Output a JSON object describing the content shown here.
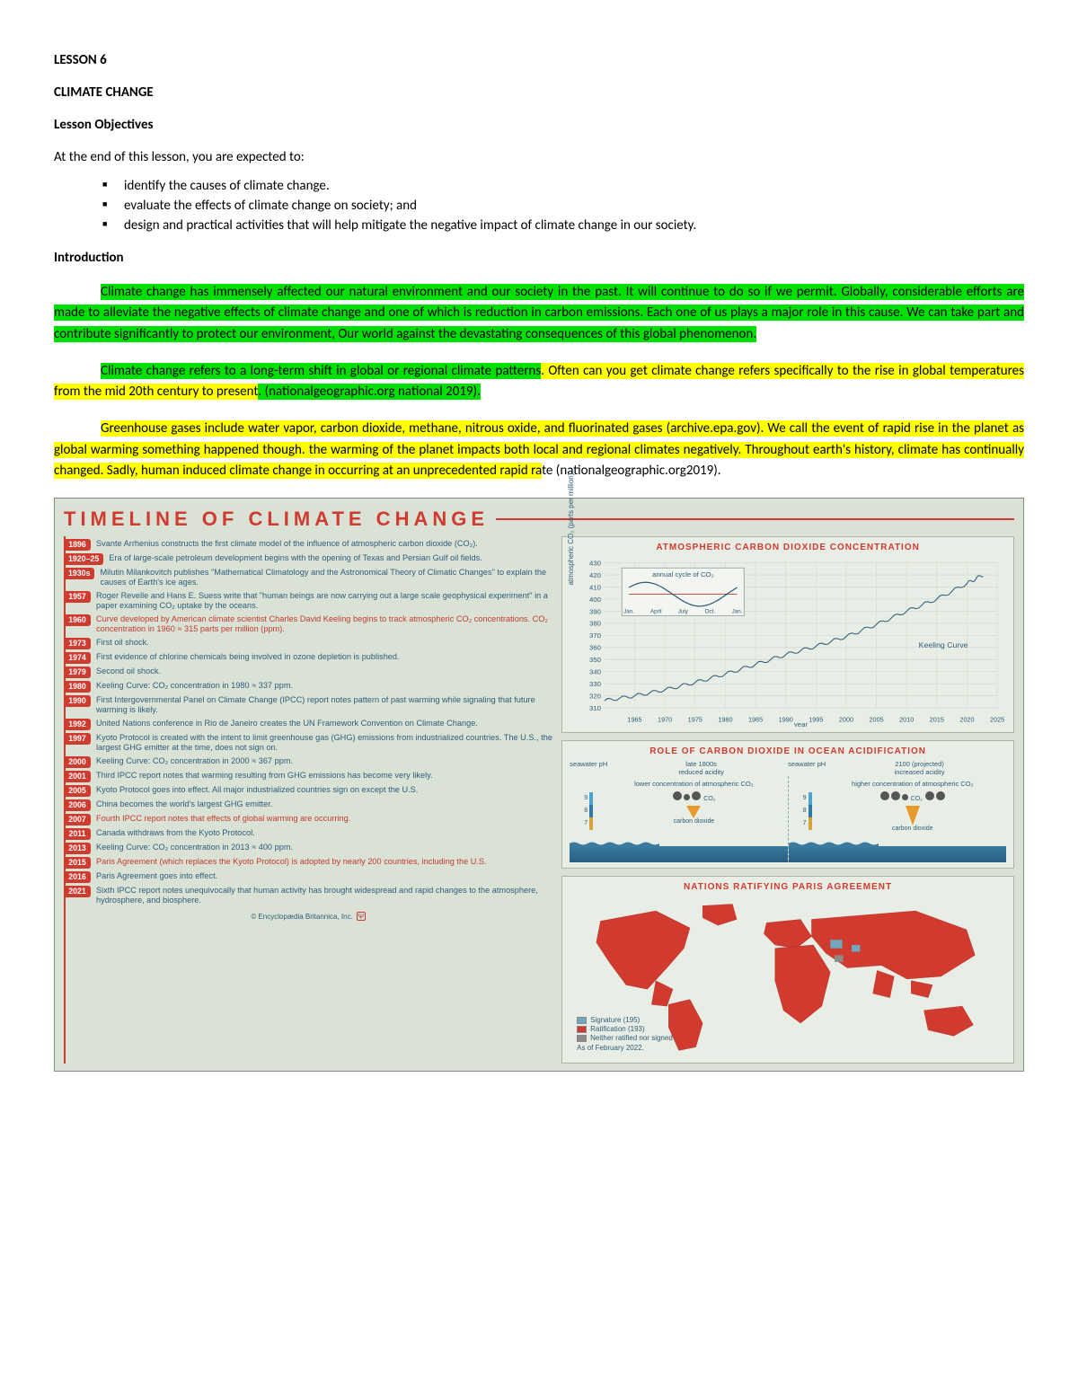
{
  "lesson_number": "LESSON 6",
  "lesson_title": "CLIMATE CHANGE",
  "objectives_heading": "Lesson Objectives",
  "objectives_intro": "At the end of this lesson, you are expected to:",
  "objectives": [
    "identify the causes of climate change.",
    "evaluate the effects of climate change on society; and",
    "design and practical activities that will help mitigate the negative impact of climate change in our society."
  ],
  "intro_heading": "Introduction",
  "para1": "Climate change has immensely affected our natural environment and our society in the past. It will continue to do so if we permit. Globally, considerable efforts are made to alleviate the negative effects of climate change and one of which is reduction in carbon emissions. Each one of us plays a major role in this cause. We can take part and contribute significantly to protect our environment, Our world against the devastating consequences of this global phenomenon.",
  "para2_a": "Climate change refers to a long-term shift in global or regional climate patterns",
  "para2_b": ". Often can you get climate change refers specifically to the rise in global temperatures from the mid 20th century to present",
  "para2_c": ". (nationalgeographic.org national 2019).",
  "para3_a": "Greenhouse gases include water vapor, carbon dioxide, methane, nitrous oxide, and fluorinated gases (archive.epa.gov). We call the event of rapid rise in the planet as global warming something happened though",
  "para3_b": ". the warming of the planet impacts both local and regional climates negatively. Throughout earth's history, climate has continually changed. Sadly, human induced climate change in occurring at an unprecedented rapid ra",
  "para3_c": "te (nationalgeographic.org2019).",
  "highlight_colors": {
    "green": "#00e000",
    "yellow": "#ffff00"
  },
  "infographic": {
    "background": "#d9e2d5",
    "accent": "#d13a2f",
    "text_blue": "#2f5c7a",
    "title": "TIMELINE OF CLIMATE CHANGE",
    "credit": "© Encyclopædia Britannica, Inc.",
    "timeline": [
      {
        "year": "1896",
        "text": "Svante Arrhenius constructs the first climate model of the influence of atmospheric carbon dioxide (CO₂).",
        "red": false
      },
      {
        "year": "1920–25",
        "text": "Era of large-scale petroleum development begins with the opening of Texas and Persian Gulf oil fields.",
        "red": false
      },
      {
        "year": "1930s",
        "text": "Milutin Milankovitch publishes \"Mathematical Climatology and the Astronomical Theory of Climatic Changes\" to explain the causes of Earth's ice ages.",
        "red": false
      },
      {
        "year": "1957",
        "text": "Roger Revelle and Hans E. Suess write that \"human beings are now carrying out a large scale geophysical experiment\" in a paper examining CO₂ uptake by the oceans.",
        "red": false
      },
      {
        "year": "1960",
        "text": "Curve developed by American climate scientist Charles David Keeling begins to track atmospheric CO₂ concentrations. CO₂ concentration in 1960 ≈ 315 parts per million (ppm).",
        "red": true
      },
      {
        "year": "1973",
        "text": "First oil shock.",
        "red": false
      },
      {
        "year": "1974",
        "text": "First evidence of chlorine chemicals being involved in ozone depletion is published.",
        "red": false
      },
      {
        "year": "1979",
        "text": "Second oil shock.",
        "red": false
      },
      {
        "year": "1980",
        "text": "Keeling Curve: CO₂ concentration in 1980 ≈ 337 ppm.",
        "red": false
      },
      {
        "year": "1990",
        "text": "First Intergovernmental Panel on Climate Change (IPCC) report notes pattern of past warming while signaling that future warming is likely.",
        "red": false
      },
      {
        "year": "1992",
        "text": "United Nations conference in Rio de Janeiro creates the UN Framework Convention on Climate Change.",
        "red": false
      },
      {
        "year": "1997",
        "text": "Kyoto Protocol is created with the intent to limit greenhouse gas (GHG) emissions from industrialized countries. The U.S., the largest GHG emitter at the time, does not sign on.",
        "red": false
      },
      {
        "year": "2000",
        "text": "Keeling Curve: CO₂ concentration in 2000 ≈ 367 ppm.",
        "red": false
      },
      {
        "year": "2001",
        "text": "Third IPCC report notes that warming resulting from GHG emissions has become very likely.",
        "red": false
      },
      {
        "year": "2005",
        "text": "Kyoto Protocol goes into effect. All major industrialized countries sign on except the U.S.",
        "red": false
      },
      {
        "year": "2006",
        "text": "China becomes the world's largest GHG emitter.",
        "red": false
      },
      {
        "year": "2007",
        "text": "Fourth IPCC report notes that effects of global warming are occurring.",
        "red": true
      },
      {
        "year": "2011",
        "text": "Canada withdraws from the Kyoto Protocol.",
        "red": false
      },
      {
        "year": "2013",
        "text": "Keeling Curve: CO₂ concentration in 2013 ≈ 400 ppm.",
        "red": false
      },
      {
        "year": "2015",
        "text": "Paris Agreement (which replaces the Kyoto Protocol) is adopted by nearly 200 countries, including the U.S.",
        "red": true
      },
      {
        "year": "2016",
        "text": "Paris Agreement goes into effect.",
        "red": false
      },
      {
        "year": "2021",
        "text": "Sixth IPCC report notes unequivocally that human activity has brought widespread and rapid changes to the atmosphere, hydrosphere, and biosphere.",
        "red": false
      }
    ],
    "co2_chart": {
      "title": "ATMOSPHERIC CARBON DIOXIDE CONCENTRATION",
      "ylabel": "atmospheric CO₂ (parts per million)",
      "xlabel": "year",
      "ylim": [
        310,
        430
      ],
      "ytick_step": 10,
      "xlim": [
        1960,
        2025
      ],
      "xtick_step": 5,
      "keeling_label": "Keeling Curve",
      "line_color": "#2f5c7a",
      "grid_color": "#cfd7cc",
      "series": [
        {
          "x": 1960,
          "y": 316
        },
        {
          "x": 1965,
          "y": 320
        },
        {
          "x": 1970,
          "y": 325
        },
        {
          "x": 1975,
          "y": 331
        },
        {
          "x": 1980,
          "y": 338
        },
        {
          "x": 1985,
          "y": 346
        },
        {
          "x": 1990,
          "y": 354
        },
        {
          "x": 1995,
          "y": 361
        },
        {
          "x": 2000,
          "y": 369
        },
        {
          "x": 2005,
          "y": 379
        },
        {
          "x": 2010,
          "y": 390
        },
        {
          "x": 2015,
          "y": 400
        },
        {
          "x": 2020,
          "y": 413
        },
        {
          "x": 2023,
          "y": 421
        }
      ],
      "inset": {
        "title": "annual cycle of CO₂",
        "months": [
          "Jan.",
          "April",
          "July",
          "Oct.",
          "Jan."
        ],
        "curve_color": "#2f5c7a",
        "baseline_color": "#c23a30"
      }
    },
    "acidification": {
      "title": "ROLE OF CARBON DIOXIDE IN OCEAN ACIDIFICATION",
      "left_label_top": "late 1800s",
      "left_label_sub": "reduced acidity",
      "left_note": "lower concentration of atmospheric CO₂",
      "right_label_top": "2100 (projected)",
      "right_label_sub": "increased acidity",
      "right_note": "higher concentration of atmospheric CO₂",
      "ph_label": "seawater pH",
      "ph_values_left": [
        "9",
        "8",
        "7"
      ],
      "ph_values_right": [
        "9",
        "8",
        "7"
      ],
      "ph_colors": [
        "#4aa3d1",
        "#2f7aa6",
        "#d6a23a"
      ],
      "molecule_label": "carbon dioxide",
      "co2_label": "CO₂",
      "ocean_color": "#2a5d80"
    },
    "map": {
      "title": "NATIONS RATIFYING PARIS AGREEMENT",
      "as_of": "As of February 2022.",
      "legend": [
        {
          "label": "Signature (195)",
          "color": "#6fa7bf"
        },
        {
          "label": "Ratification (193)",
          "color": "#d13a2f"
        },
        {
          "label": "Neither ratified nor signed",
          "color": "#8c8c8c"
        }
      ],
      "land_color": "#d13a2f",
      "sea_color": "#e8eee6"
    }
  }
}
